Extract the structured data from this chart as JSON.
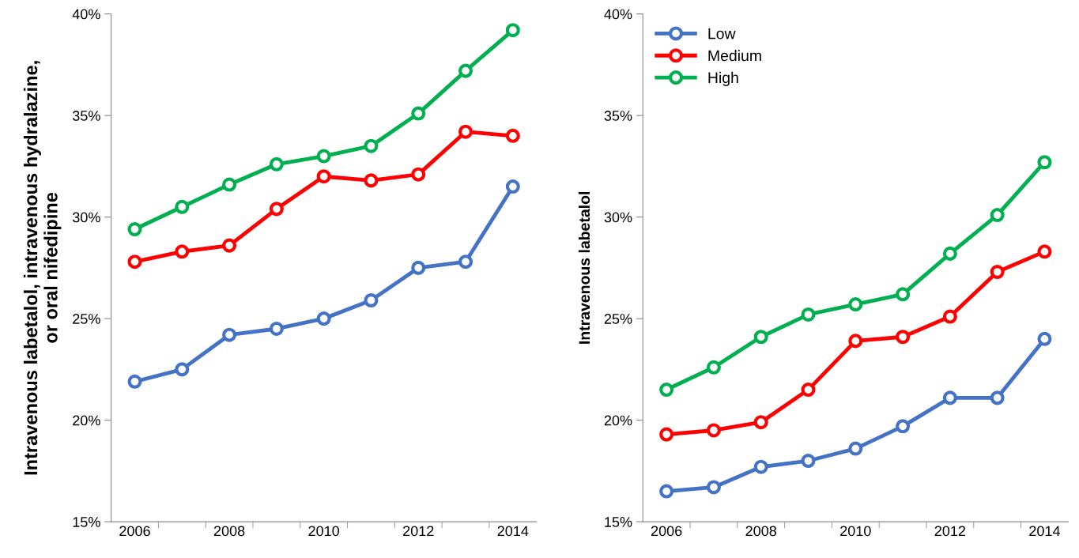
{
  "chart_data": [
    {
      "type": "line",
      "ylabel": "Intravenous labetalol, intravenous hydralazine,\nor oral nifedipine",
      "categories": [
        "2006",
        null,
        "2008",
        null,
        "2010",
        null,
        "2012",
        null,
        "2014"
      ],
      "series": [
        {
          "color": "#4472c4",
          "values": [
            21.9,
            22.5,
            24.2,
            24.5,
            25.0,
            25.9,
            27.5,
            27.8,
            31.5
          ]
        },
        {
          "color": "#ff0000",
          "values": [
            27.8,
            28.3,
            28.6,
            30.4,
            32.0,
            31.8,
            32.1,
            34.2,
            34.0
          ]
        },
        {
          "color": "#00b050",
          "values": [
            29.4,
            30.5,
            31.6,
            32.6,
            33.0,
            33.5,
            35.1,
            37.2,
            39.2
          ]
        }
      ],
      "ylim": [
        15,
        40
      ],
      "yticks": [
        {
          "value": 15,
          "label": "15%"
        },
        {
          "value": 20,
          "label": "20%"
        },
        {
          "value": 25,
          "label": "25%"
        },
        {
          "value": 30,
          "label": "30%"
        },
        {
          "value": 35,
          "label": "35%"
        },
        {
          "value": 40,
          "label": "40%"
        }
      ],
      "marker": "circle",
      "line_style": "solid",
      "grid": false,
      "legend": false
    },
    {
      "type": "line",
      "ylabel": "Intravenous labetalol",
      "categories": [
        "2006",
        null,
        "2008",
        null,
        "2010",
        null,
        "2012",
        null,
        "2014"
      ],
      "series": [
        {
          "name": "Low",
          "color": "#4472c4",
          "values": [
            16.5,
            16.7,
            17.7,
            18.0,
            18.6,
            19.7,
            21.1,
            21.1,
            24.0
          ]
        },
        {
          "name": "Medium",
          "color": "#ff0000",
          "values": [
            19.3,
            19.5,
            19.9,
            21.5,
            23.9,
            24.1,
            25.1,
            27.3,
            28.3
          ]
        },
        {
          "name": "High",
          "color": "#00b050",
          "values": [
            21.5,
            22.6,
            24.1,
            25.2,
            25.7,
            26.2,
            28.2,
            30.1,
            32.7
          ]
        }
      ],
      "ylim": [
        15,
        40
      ],
      "yticks": [
        {
          "value": 15,
          "label": "15%"
        },
        {
          "value": 20,
          "label": "20%"
        },
        {
          "value": 25,
          "label": "25%"
        },
        {
          "value": 30,
          "label": "30%"
        },
        {
          "value": 35,
          "label": "35%"
        },
        {
          "value": 40,
          "label": "40%"
        }
      ],
      "marker": "circle",
      "line_style": "solid",
      "grid": false,
      "legend": "top left"
    }
  ]
}
